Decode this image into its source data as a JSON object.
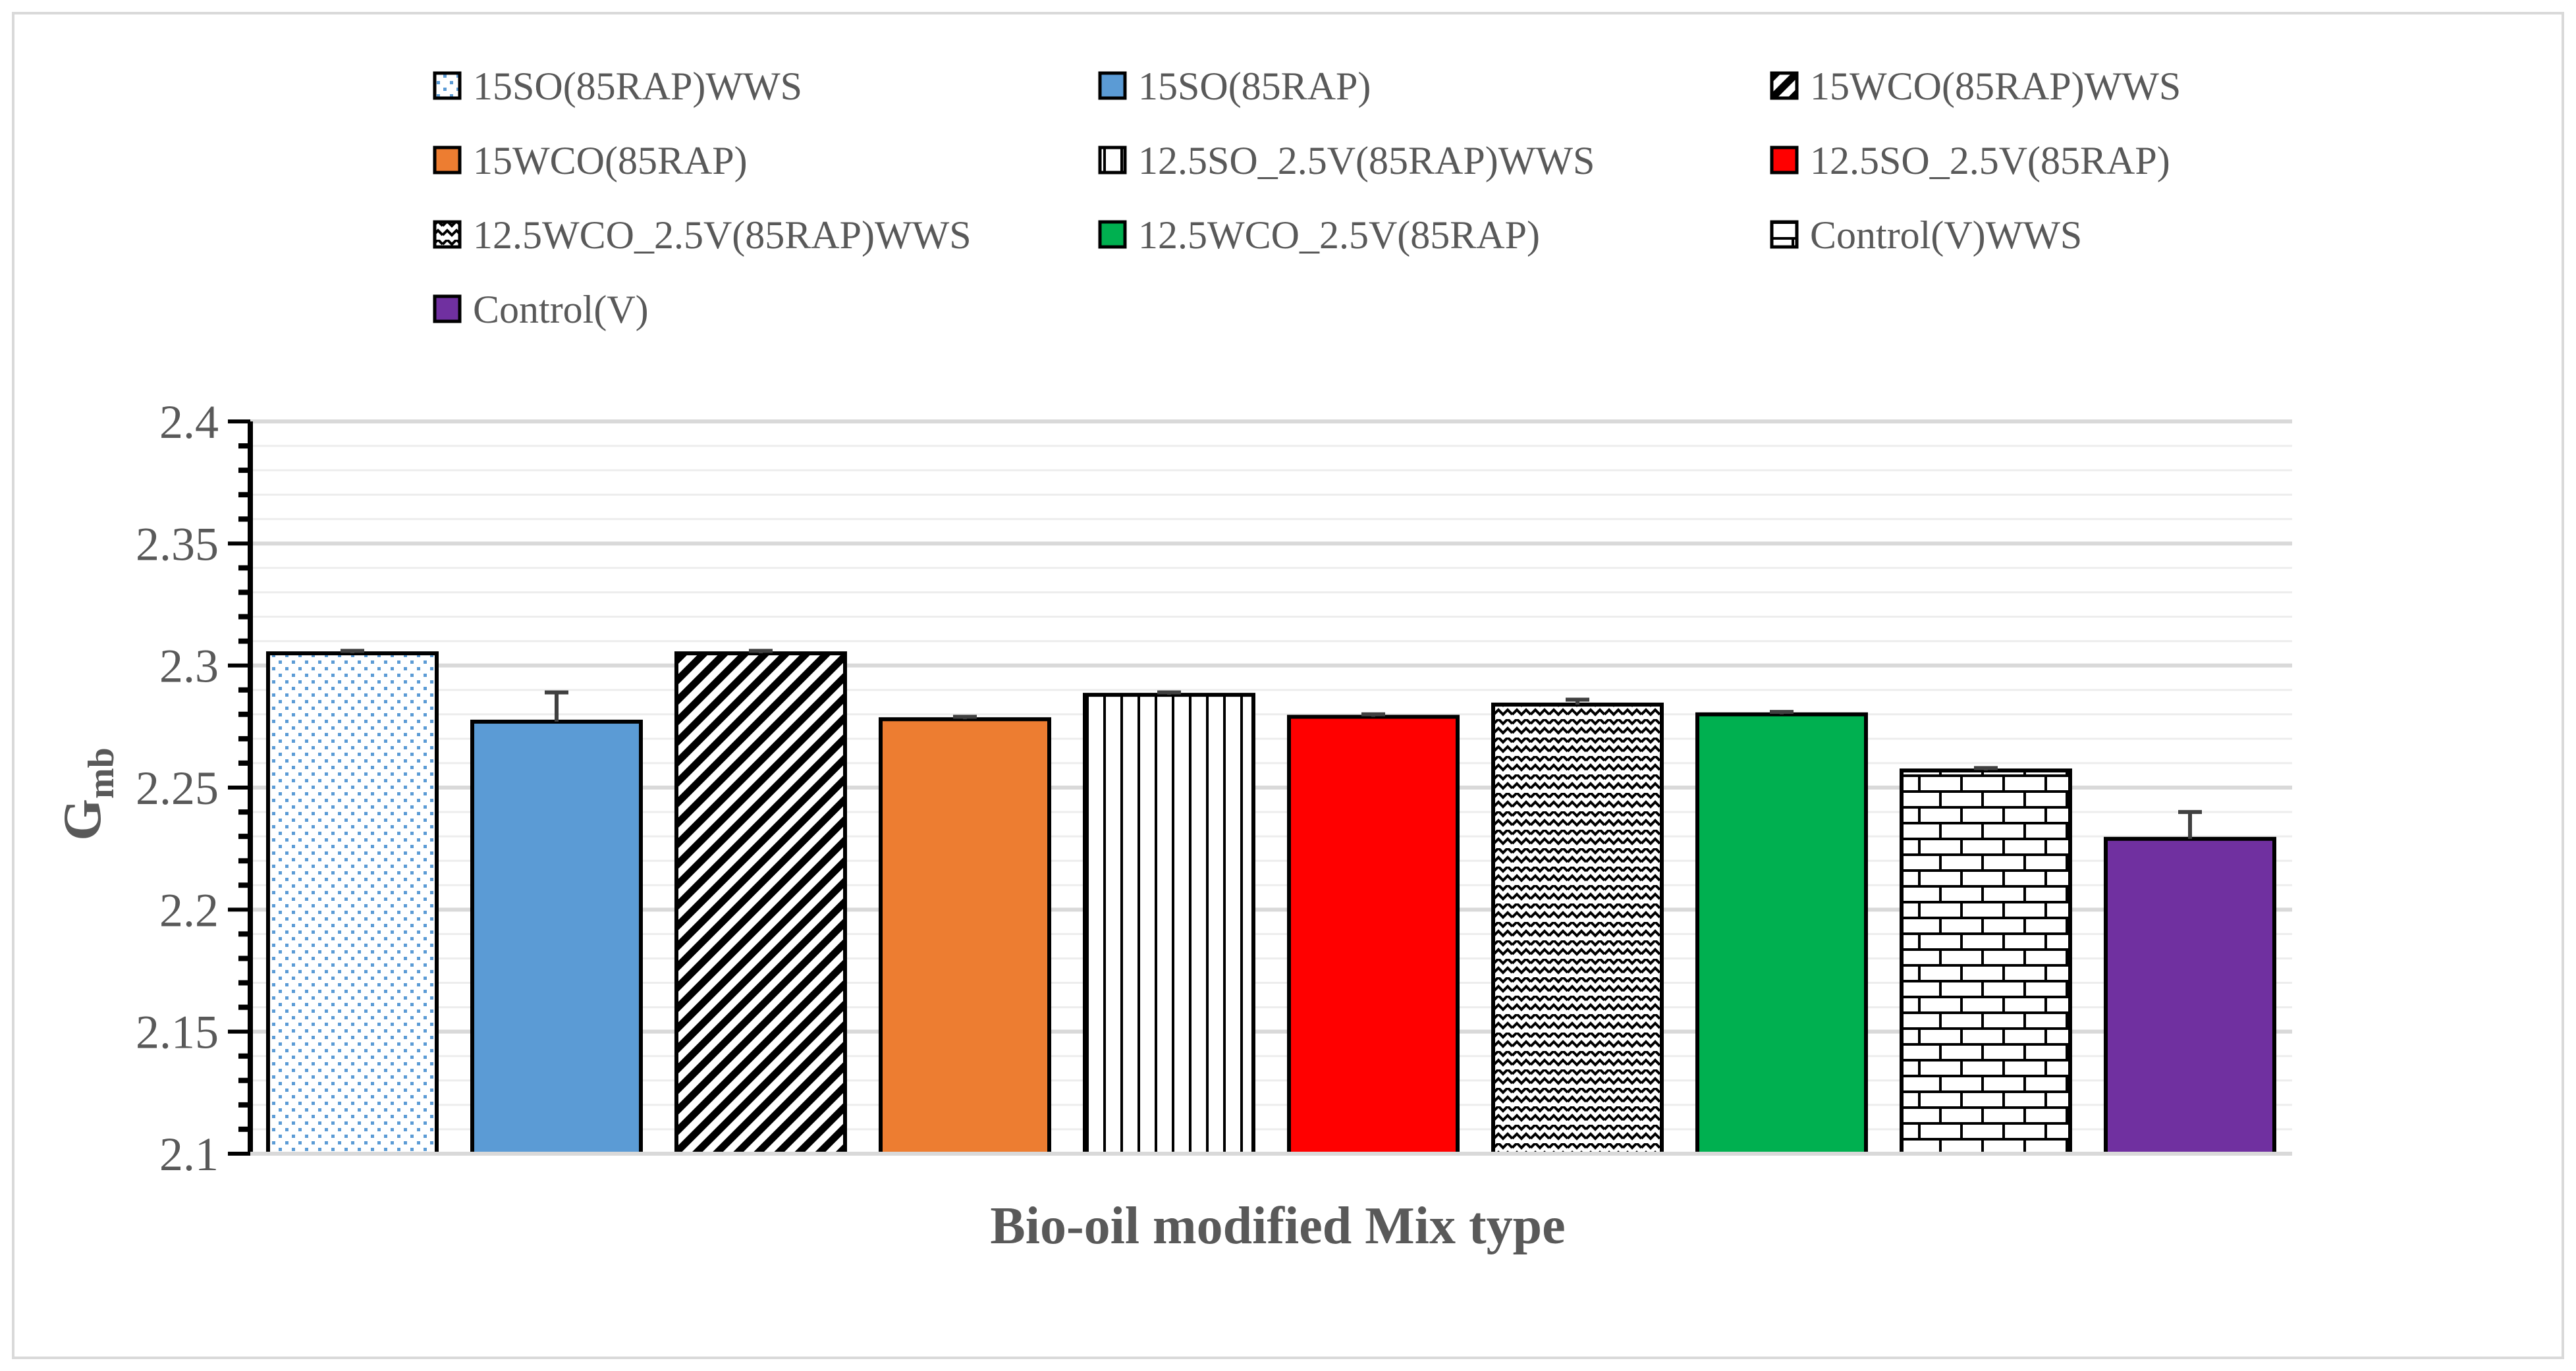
{
  "chart_data": {
    "type": "bar",
    "title": "",
    "xlabel": "Bio-oil modified Mix type",
    "ylabel": {
      "main": "G",
      "sub": "mb"
    },
    "ylim": [
      2.1,
      2.4
    ],
    "yticks": [
      "2.1",
      "2.15",
      "2.2",
      "2.25",
      "2.3",
      "2.35",
      "2.4"
    ],
    "grid": true,
    "legend_position": "top",
    "series": [
      {
        "name": "15SO(85RAP)WWS",
        "value": 2.305,
        "error": 0.001,
        "fill": "dots",
        "color": "#5b9bd5"
      },
      {
        "name": "15SO(85RAP)",
        "value": 2.277,
        "error": 0.012,
        "fill": "solid",
        "color": "#5b9bd5"
      },
      {
        "name": "15WCO(85RAP)WWS",
        "value": 2.305,
        "error": 0.001,
        "fill": "diagonal",
        "color": "#000000"
      },
      {
        "name": "15WCO(85RAP)",
        "value": 2.278,
        "error": 0.001,
        "fill": "solid",
        "color": "#ed7d31"
      },
      {
        "name": "12.5SO_2.5V(85RAP)WWS",
        "value": 2.288,
        "error": 0.001,
        "fill": "vertical",
        "color": "#000000"
      },
      {
        "name": "12.5SO_2.5V(85RAP)",
        "value": 2.279,
        "error": 0.001,
        "fill": "solid",
        "color": "#ff0000"
      },
      {
        "name": "12.5WCO_2.5V(85RAP)WWS",
        "value": 2.284,
        "error": 0.002,
        "fill": "zigzag",
        "color": "#000000"
      },
      {
        "name": "12.5WCO_2.5V(85RAP)",
        "value": 2.28,
        "error": 0.001,
        "fill": "solid",
        "color": "#00b050"
      },
      {
        "name": "Control(V)WWS",
        "value": 2.257,
        "error": 0.001,
        "fill": "brick",
        "color": "#000000"
      },
      {
        "name": "Control(V)",
        "value": 2.229,
        "error": 0.011,
        "fill": "solid",
        "color": "#7030a0"
      }
    ]
  }
}
